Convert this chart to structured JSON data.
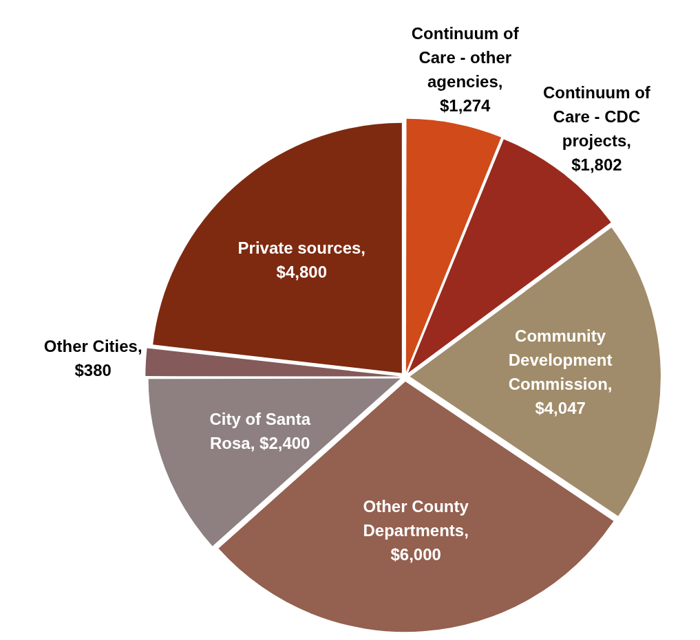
{
  "chart_data": {
    "type": "pie",
    "categories": [
      "Continuum of Care - other agencies",
      "Continuum of Care - CDC projects",
      "Community Development Commission",
      "Other County Departments",
      "City of Santa Rosa",
      "Other Cities",
      "Private sources"
    ],
    "values": [
      1274,
      1802,
      4047,
      6000,
      2400,
      380,
      4800
    ],
    "value_labels": [
      ", $1,274",
      ", $1,802",
      ", $4,047",
      ", $6,000",
      ", $2,400",
      ", $380",
      ", $4,800"
    ],
    "colors": [
      "#d04a1a",
      "#9a2a1e",
      "#a08c6a",
      "#946050",
      "#8e8080",
      "#845a5a",
      "#7e2a10"
    ],
    "legend": false
  }
}
